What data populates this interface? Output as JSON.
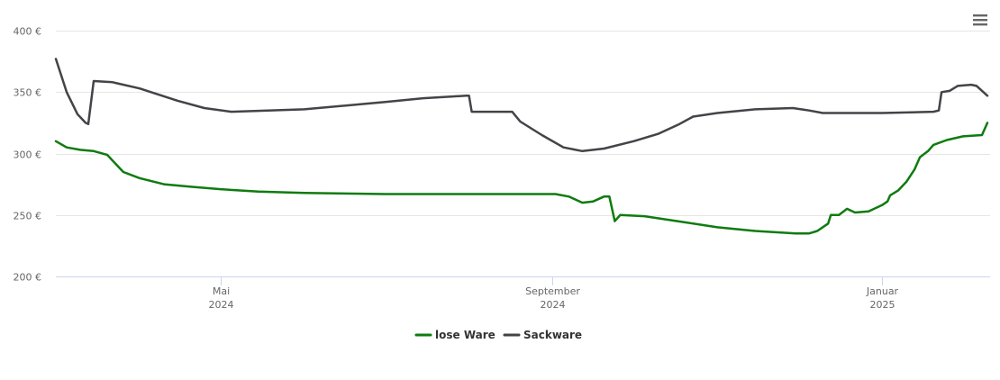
{
  "chart_data": {
    "type": "line",
    "title": "",
    "xlabel": "",
    "ylabel": "",
    "ylim": [
      200,
      400
    ],
    "xlim": [
      "2024-03-01",
      "2025-02-10"
    ],
    "y_ticks": [
      {
        "value": 200,
        "label": "200 €"
      },
      {
        "value": 250,
        "label": "250 €"
      },
      {
        "value": 300,
        "label": "300 €"
      },
      {
        "value": 350,
        "label": "350 €"
      },
      {
        "value": 400,
        "label": "400 €"
      }
    ],
    "x_ticks": [
      {
        "date": "2024-05-01",
        "month": "Mai",
        "year": "2024"
      },
      {
        "date": "2024-09-01",
        "month": "September",
        "year": "2024"
      },
      {
        "date": "2025-01-01",
        "month": "Januar",
        "year": "2025"
      }
    ],
    "grid": true,
    "legend_position": "bottom-center",
    "series": [
      {
        "name": "lose Ware",
        "color": "#0f7b0f",
        "points": [
          [
            "2024-03-01",
            310
          ],
          [
            "2024-03-05",
            305
          ],
          [
            "2024-03-10",
            303
          ],
          [
            "2024-03-15",
            302
          ],
          [
            "2024-03-20",
            299
          ],
          [
            "2024-03-26",
            285
          ],
          [
            "2024-04-01",
            280
          ],
          [
            "2024-04-10",
            275
          ],
          [
            "2024-04-20",
            273
          ],
          [
            "2024-05-01",
            271
          ],
          [
            "2024-05-15",
            269
          ],
          [
            "2024-06-01",
            268
          ],
          [
            "2024-07-01",
            267
          ],
          [
            "2024-08-01",
            267
          ],
          [
            "2024-09-02",
            267
          ],
          [
            "2024-09-07",
            265
          ],
          [
            "2024-09-12",
            260
          ],
          [
            "2024-09-16",
            261
          ],
          [
            "2024-09-20",
            265
          ],
          [
            "2024-09-22",
            265
          ],
          [
            "2024-09-24",
            245
          ],
          [
            "2024-09-26",
            250
          ],
          [
            "2024-10-05",
            249
          ],
          [
            "2024-10-20",
            244
          ],
          [
            "2024-11-01",
            240
          ],
          [
            "2024-11-15",
            237
          ],
          [
            "2024-11-30",
            235
          ],
          [
            "2024-12-05",
            235
          ],
          [
            "2024-12-08",
            237
          ],
          [
            "2024-12-12",
            243
          ],
          [
            "2024-12-13",
            250
          ],
          [
            "2024-12-16",
            250
          ],
          [
            "2024-12-19",
            255
          ],
          [
            "2024-12-22",
            252
          ],
          [
            "2024-12-27",
            253
          ],
          [
            "2025-01-01",
            258
          ],
          [
            "2025-01-03",
            261
          ],
          [
            "2025-01-04",
            266
          ],
          [
            "2025-01-07",
            270
          ],
          [
            "2025-01-10",
            277
          ],
          [
            "2025-01-13",
            287
          ],
          [
            "2025-01-15",
            297
          ],
          [
            "2025-01-18",
            302
          ],
          [
            "2025-01-20",
            307
          ],
          [
            "2025-01-25",
            311
          ],
          [
            "2025-01-31",
            314
          ],
          [
            "2025-02-07",
            315
          ],
          [
            "2025-02-09",
            325
          ]
        ]
      },
      {
        "name": "Sackware",
        "color": "#434348",
        "points": [
          [
            "2024-03-01",
            377
          ],
          [
            "2024-03-05",
            350
          ],
          [
            "2024-03-09",
            332
          ],
          [
            "2024-03-12",
            325
          ],
          [
            "2024-03-13",
            324
          ],
          [
            "2024-03-15",
            359
          ],
          [
            "2024-03-22",
            358
          ],
          [
            "2024-04-01",
            353
          ],
          [
            "2024-04-15",
            343
          ],
          [
            "2024-04-25",
            337
          ],
          [
            "2024-05-05",
            334
          ],
          [
            "2024-06-01",
            336
          ],
          [
            "2024-07-01",
            342
          ],
          [
            "2024-07-15",
            345
          ],
          [
            "2024-07-31",
            347
          ],
          [
            "2024-08-01",
            347
          ],
          [
            "2024-08-02",
            334
          ],
          [
            "2024-08-17",
            334
          ],
          [
            "2024-08-20",
            326
          ],
          [
            "2024-08-28",
            315
          ],
          [
            "2024-09-05",
            305
          ],
          [
            "2024-09-12",
            302
          ],
          [
            "2024-09-20",
            304
          ],
          [
            "2024-10-01",
            310
          ],
          [
            "2024-10-10",
            316
          ],
          [
            "2024-10-18",
            324
          ],
          [
            "2024-10-23",
            330
          ],
          [
            "2024-11-01",
            333
          ],
          [
            "2024-11-15",
            336
          ],
          [
            "2024-11-29",
            337
          ],
          [
            "2024-12-05",
            335
          ],
          [
            "2024-12-10",
            333
          ],
          [
            "2025-01-01",
            333
          ],
          [
            "2025-01-20",
            334
          ],
          [
            "2025-01-22",
            335
          ],
          [
            "2025-01-23",
            350
          ],
          [
            "2025-01-26",
            351
          ],
          [
            "2025-01-29",
            355
          ],
          [
            "2025-02-03",
            356
          ],
          [
            "2025-02-05",
            355
          ],
          [
            "2025-02-09",
            347
          ]
        ]
      }
    ]
  }
}
